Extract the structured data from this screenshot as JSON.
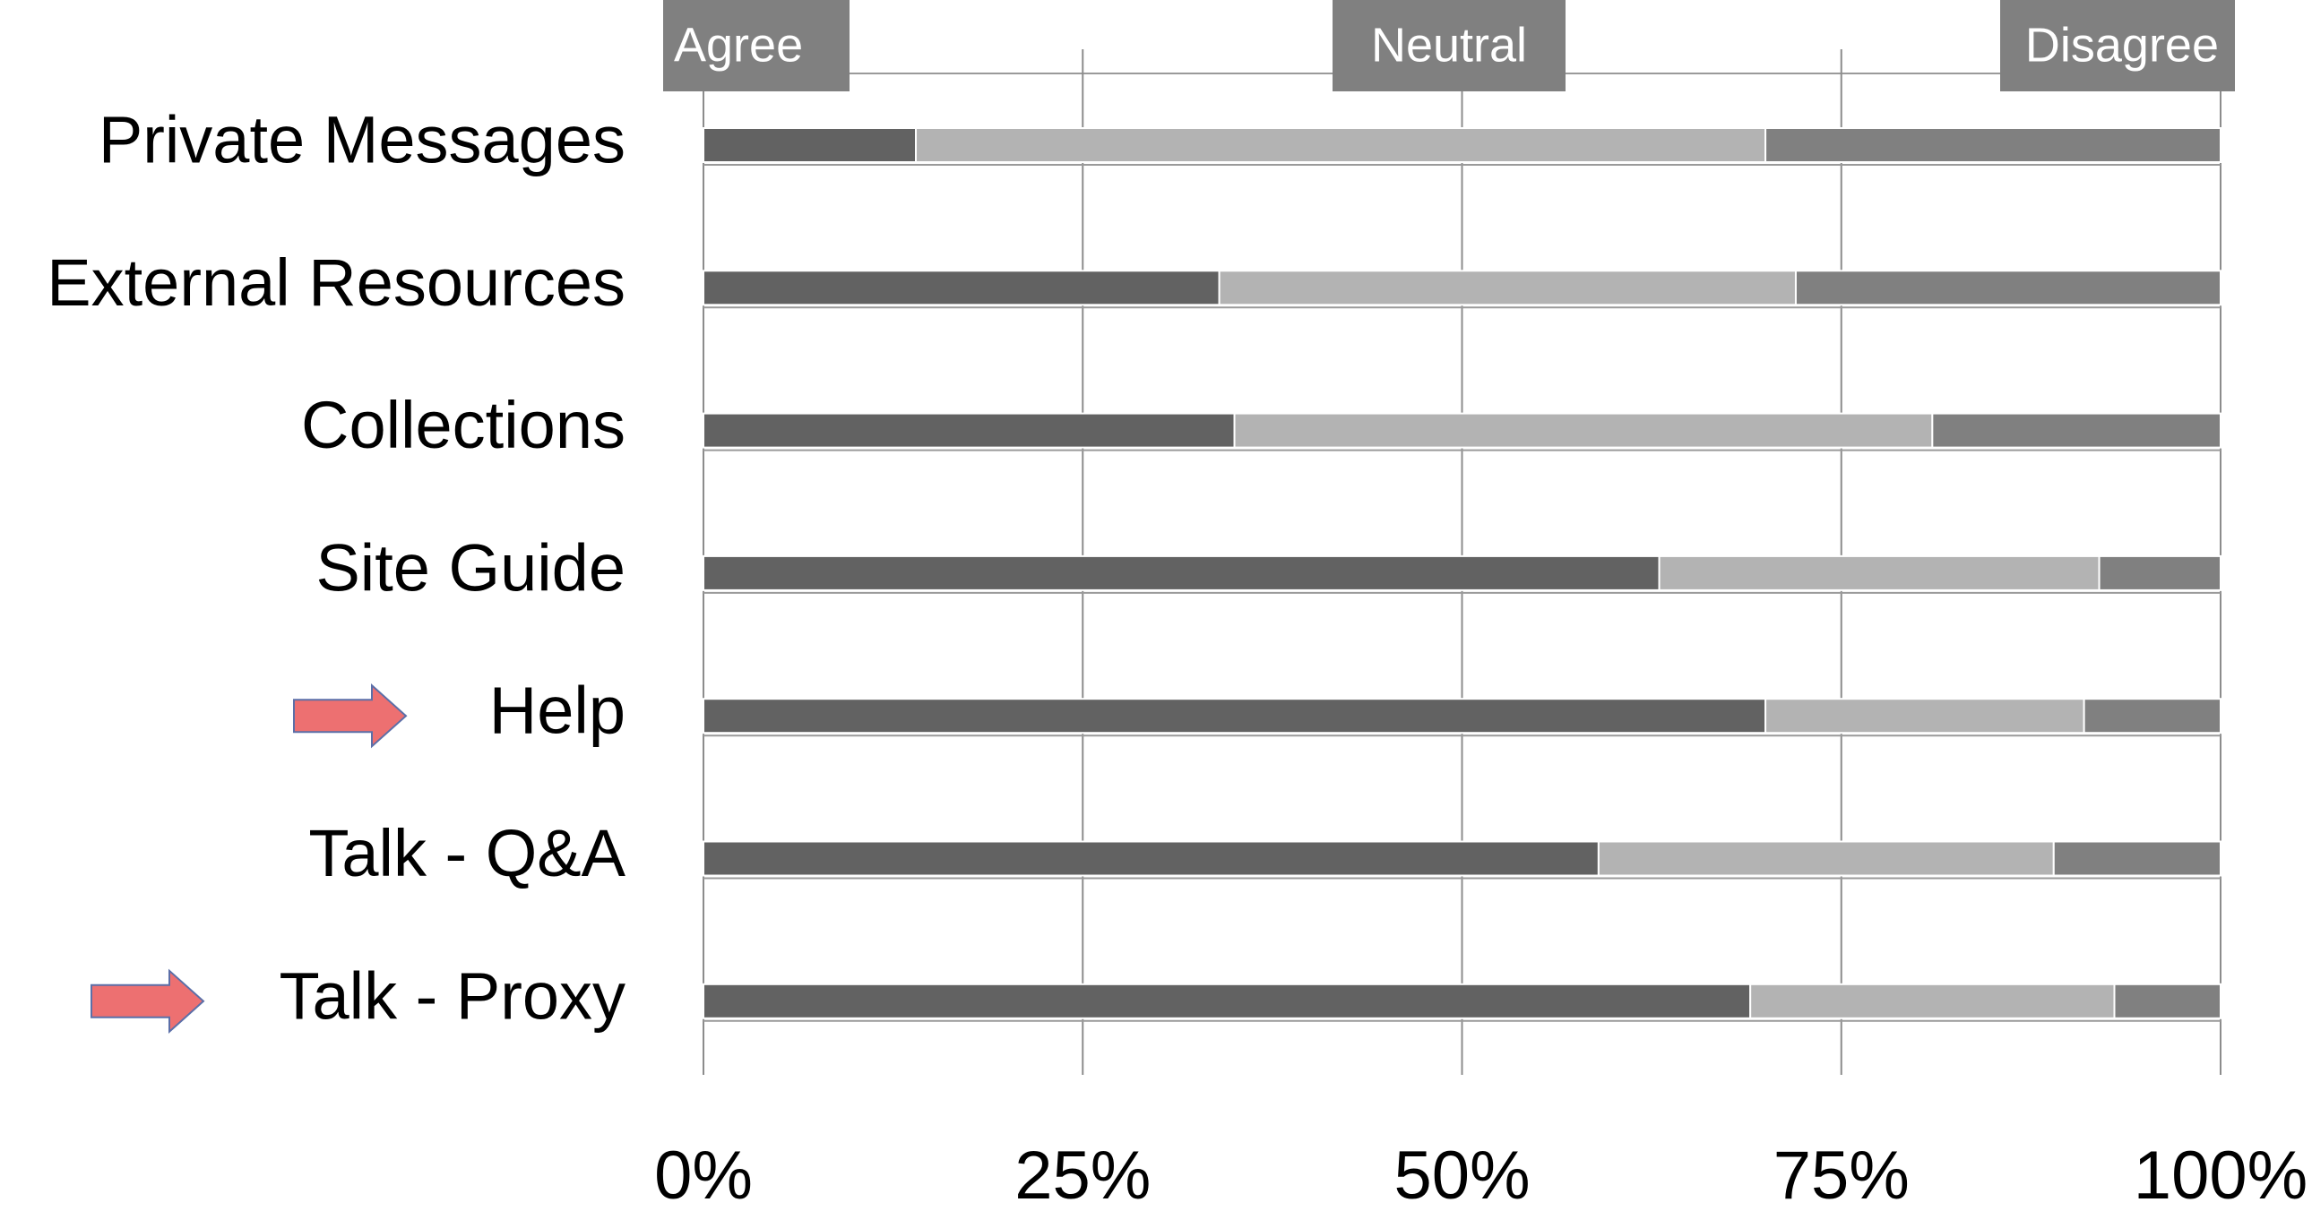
{
  "chart_data": {
    "type": "bar",
    "stacked": true,
    "orientation": "horizontal",
    "categories": [
      "Private Messages",
      "External Resources",
      "Collections",
      "Site Guide",
      "Help",
      "Talk - Q&A",
      "Talk - Proxy"
    ],
    "series": [
      {
        "name": "Agree",
        "color": "#626262",
        "values": [
          14,
          34,
          35,
          63,
          70,
          59,
          69
        ]
      },
      {
        "name": "Neutral",
        "color": "#b3b3b3",
        "values": [
          56,
          38,
          46,
          29,
          21,
          30,
          24
        ]
      },
      {
        "name": "Disagree",
        "color": "#808080",
        "values": [
          30,
          28,
          19,
          8,
          9,
          11,
          7
        ]
      }
    ],
    "xlim": [
      0,
      100
    ],
    "xticks": [
      "0%",
      "25%",
      "50%",
      "75%",
      "100%"
    ],
    "grid": true,
    "legend_placement": "top",
    "highlighted_categories": [
      "Help",
      "Talk - Proxy"
    ],
    "arrow_icon": "right-arrow-icon",
    "arrow_color": "#ed7071"
  }
}
